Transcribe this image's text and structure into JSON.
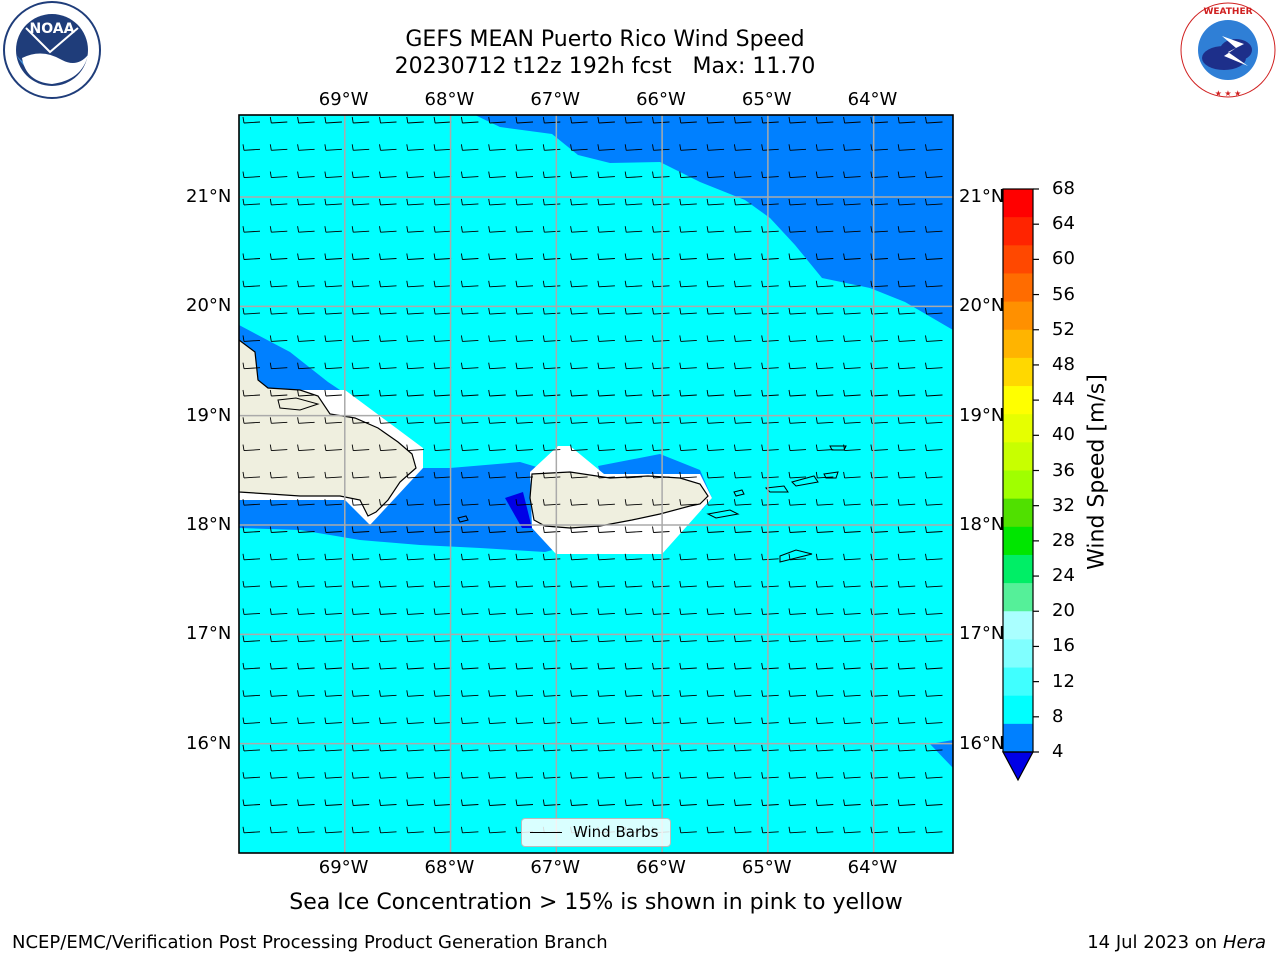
{
  "header": {
    "title_line1": "GEFS MEAN Puerto Rico Wind Speed",
    "title_line2": "20230712 t12z 192h fcst   Max: 11.70"
  },
  "logos": {
    "left": "noaa-logo",
    "right": "nws-logo"
  },
  "map": {
    "lon_labels": [
      "69°W",
      "68°W",
      "67°W",
      "66°W",
      "65°W",
      "64°W"
    ],
    "lat_labels": [
      "21°N",
      "20°N",
      "19°N",
      "18°N",
      "17°N",
      "16°N"
    ],
    "lon_values": [
      -69,
      -68,
      -67,
      -66,
      -65,
      -64
    ],
    "lat_values": [
      21,
      20,
      19,
      18,
      17,
      16
    ],
    "extent": {
      "lon": [
        -70,
        -63.25
      ],
      "lat": [
        15,
        21.75
      ]
    },
    "colors": {
      "ocean_main": "#00ffff",
      "ocean_weak": "#0080ff",
      "ocean_calm": "#0000e6",
      "land": "#efefdf"
    },
    "legend_label": "Wind Barbs"
  },
  "colorbar": {
    "title": "Wind Speed [m/s]",
    "ticks": [
      "68",
      "64",
      "60",
      "56",
      "52",
      "48",
      "44",
      "40",
      "36",
      "32",
      "28",
      "24",
      "20",
      "16",
      "12",
      "8",
      "4"
    ],
    "colors": [
      "#ff0000",
      "#ff2400",
      "#ff4800",
      "#ff6c00",
      "#ff9000",
      "#ffb400",
      "#ffd800",
      "#ffff00",
      "#e6ff00",
      "#c8ff00",
      "#a0ff00",
      "#50e000",
      "#00e600",
      "#00ee66",
      "#55f099",
      "#aaffff",
      "#80ffff",
      "#40ffff",
      "#00ffff",
      "#0080ff"
    ],
    "under_color": "#0000e6"
  },
  "note": "Sea Ice Concentration > 15% is shown in pink to yellow",
  "footer": {
    "left": "NCEP/EMC/Verification Post Processing Product Generation Branch",
    "date": "14 Jul 2023 on ",
    "machine": "Hera"
  }
}
